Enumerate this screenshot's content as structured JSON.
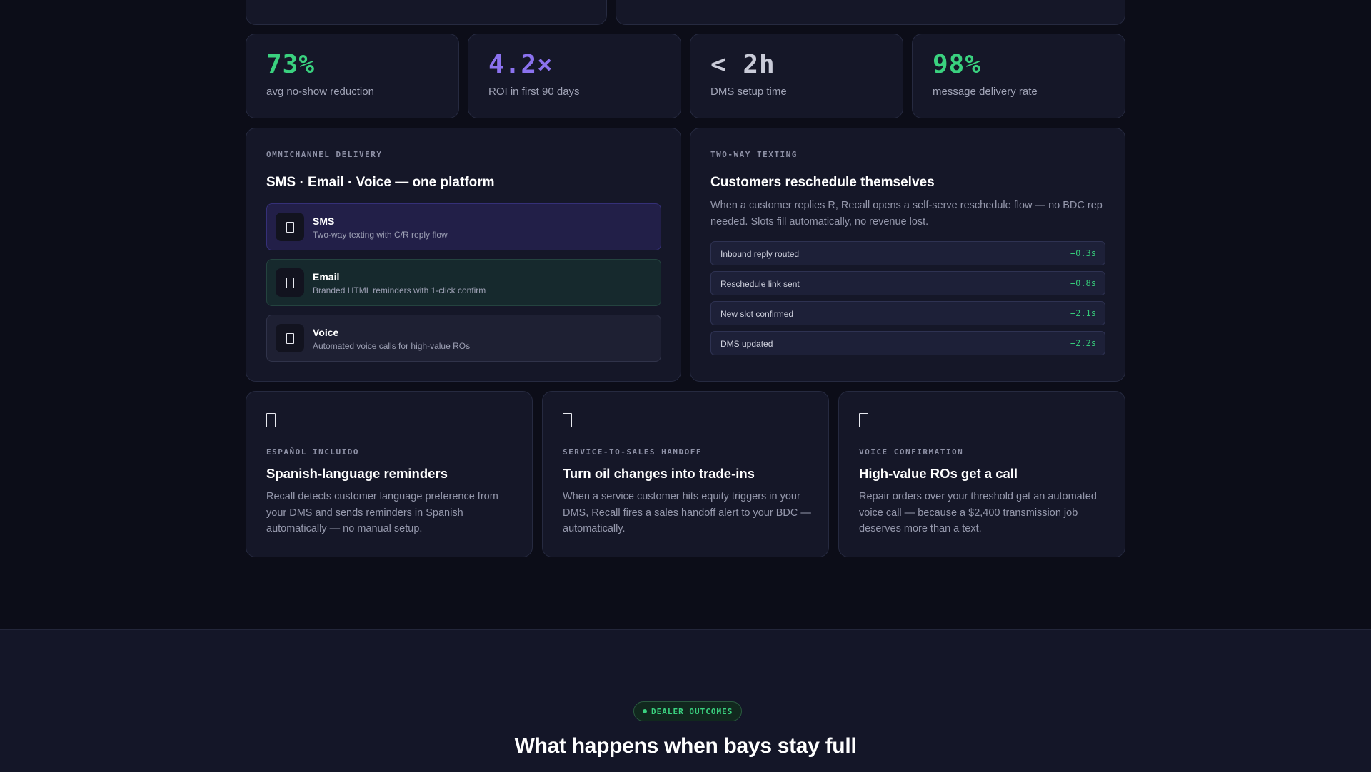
{
  "colors": {
    "green": "#3ad17f",
    "purple": "#8b72ef",
    "gray_value": "#c9cbd8",
    "background": "#0c0d18",
    "card": "#151728"
  },
  "stats": [
    {
      "value": "73%",
      "label": "avg no-show reduction",
      "color": "green"
    },
    {
      "value": "4.2×",
      "label": "ROI in first 90 days",
      "color": "purple"
    },
    {
      "value": "< 2h",
      "label": "DMS setup time",
      "color": "gray"
    },
    {
      "value": "98%",
      "label": "message delivery rate",
      "color": "green"
    }
  ],
  "omnichannel": {
    "eyebrow": "OMNICHANNEL DELIVERY",
    "title": "SMS · Email · Voice — one platform",
    "channels": [
      {
        "icon": "message-icon",
        "name": "SMS",
        "desc": "Two-way texting with C/R reply flow"
      },
      {
        "icon": "mail-icon",
        "name": "Email",
        "desc": "Branded HTML reminders with 1-click confirm"
      },
      {
        "icon": "phone-icon",
        "name": "Voice",
        "desc": "Automated voice calls for high-value ROs"
      }
    ]
  },
  "two_way": {
    "eyebrow": "TWO-WAY TEXTING",
    "title": "Customers reschedule themselves",
    "body": "When a customer replies R, Recall opens a self-serve reschedule flow — no BDC rep needed. Slots fill automatically, no revenue lost.",
    "timeline": [
      {
        "label": "Inbound reply routed",
        "time": "+0.3s"
      },
      {
        "label": "Reschedule link sent",
        "time": "+0.8s"
      },
      {
        "label": "New slot confirmed",
        "time": "+2.1s"
      },
      {
        "label": "DMS updated",
        "time": "+2.2s"
      }
    ]
  },
  "features": [
    {
      "icon": "globe-icon",
      "eyebrow": "ESPAÑOL INCLUIDO",
      "title": "Spanish-language reminders",
      "body": "Recall detects customer language preference from your DMS and sends reminders in Spanish automatically — no manual setup."
    },
    {
      "icon": "handoff-icon",
      "eyebrow": "SERVICE-TO-SALES HANDOFF",
      "title": "Turn oil changes into trade-ins",
      "body": "When a service customer hits equity triggers in your DMS, Recall fires a sales handoff alert to your BDC — automatically."
    },
    {
      "icon": "phone-icon",
      "eyebrow": "VOICE CONFIRMATION",
      "title": "High-value ROs get a call",
      "body": "Repair orders over your threshold get an automated voice call — because a $2,400 transmission job deserves more than a text."
    }
  ],
  "outcomes": {
    "badge": "DEALER OUTCOMES",
    "title": "What happens when bays stay full"
  }
}
